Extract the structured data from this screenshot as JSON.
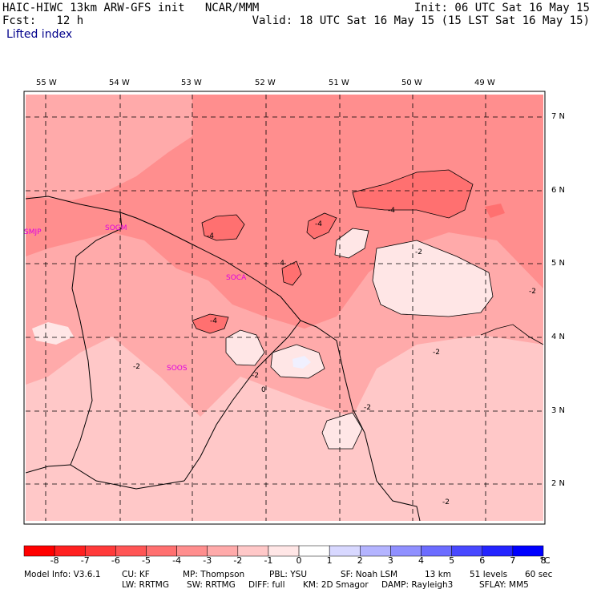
{
  "header": {
    "line1_left": "HAIC-HIWC 13km ARW-GFS init   NCAR/MMM",
    "line1_right": "Init: 06 UTC Sat 16 May 15",
    "line2_left": "Fcst:   12 h",
    "line2_right": "Valid: 18 UTC Sat 16 May 15 (15 LST Sat 16 May 15)",
    "field": "Lifted index"
  },
  "lon_labels": [
    "55 W",
    "54 W",
    "53 W",
    "52 W",
    "51 W",
    "50 W",
    "49 W"
  ],
  "lat_labels": [
    "7 N",
    "6 N",
    "5 N",
    "4 N",
    "3 N",
    "2 N"
  ],
  "stations": [
    "SMJP",
    "SOGM",
    "SOCA",
    "SOOS"
  ],
  "contour_labels": [
    "-4",
    "-4",
    "-4",
    "-4",
    "-4",
    "-2",
    "-2",
    "-2",
    "-2",
    "-2",
    "-2",
    "-2",
    "0"
  ],
  "colorbar": {
    "ticks": [
      "-8",
      "-7",
      "-6",
      "-5",
      "-4",
      "-3",
      "-2",
      "-1",
      "0",
      "1",
      "2",
      "3",
      "4",
      "5",
      "6",
      "7",
      "8"
    ],
    "unit": "°C",
    "colors": [
      "#ff0000",
      "#ff2020",
      "#ff3a3a",
      "#ff5555",
      "#ff7070",
      "#ff8e8e",
      "#ffaaaa",
      "#ffc8c8",
      "#ffe6e6",
      "#ffffff",
      "#d8d8ff",
      "#b4b4ff",
      "#9090ff",
      "#6c6cff",
      "#4848ff",
      "#2424ff",
      "#0000ff"
    ]
  },
  "footer": {
    "line1": [
      "Model Info: V3.6.1",
      "CU: KF",
      "MP: Thompson",
      "PBL: YSU",
      "SF: Noah LSM",
      "13 km",
      "51 levels",
      "60 sec"
    ],
    "line2": [
      "LW: RRTMG",
      "SW: RRTMG",
      "DIFF: full",
      "KM: 2D Smagor",
      "DAMP: Rayleigh3",
      "SFLAY: MM5"
    ]
  }
}
